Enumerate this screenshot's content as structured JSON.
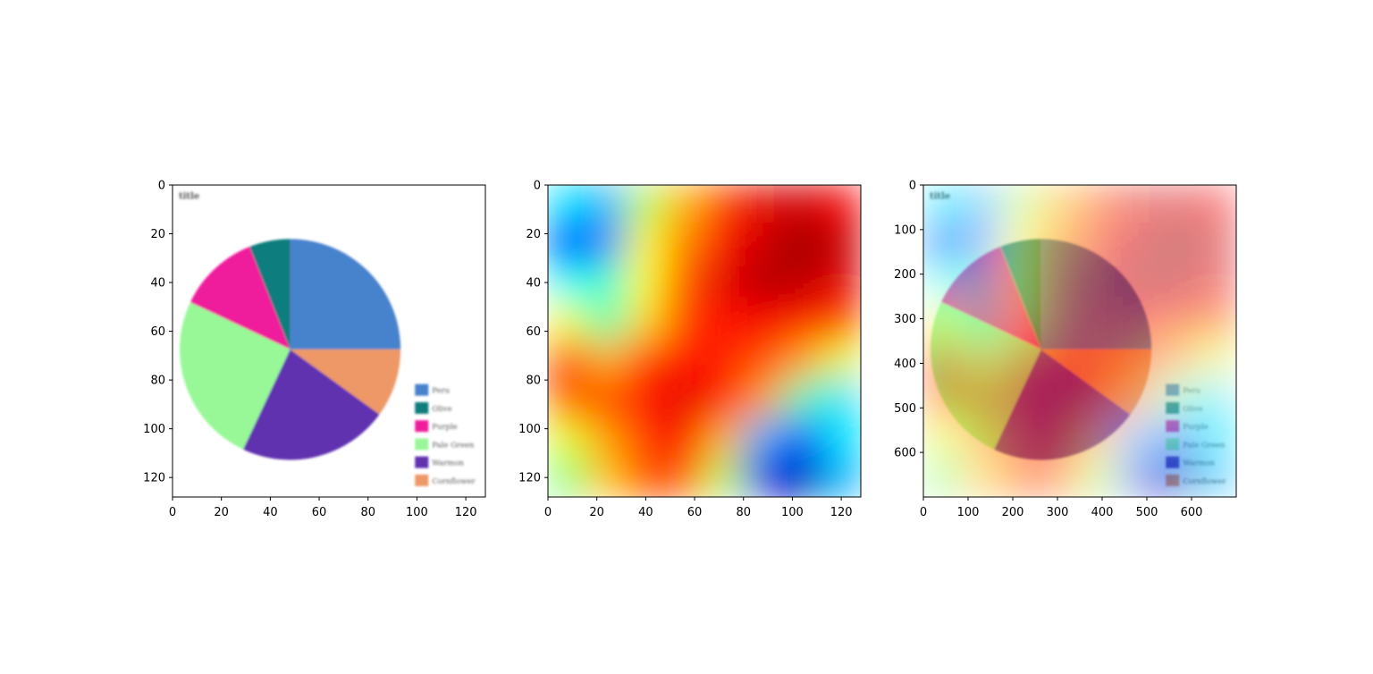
{
  "chart_data": [
    {
      "type": "image",
      "panel": "input-image",
      "xlim": [
        0,
        128
      ],
      "ylim": [
        128,
        0
      ],
      "xticks": [
        0,
        20,
        40,
        60,
        80,
        100,
        120
      ],
      "yticks": [
        0,
        20,
        40,
        60,
        80,
        100,
        120
      ],
      "embedded_chart": {
        "type": "pie",
        "title": "title",
        "slices": [
          {
            "label": "Peru",
            "value": 25,
            "color": "#4682cd"
          },
          {
            "label": "Olive",
            "value": 6,
            "color": "#0e7d7d"
          },
          {
            "label": "Purple",
            "value": 12,
            "color": "#ef1e9c"
          },
          {
            "label": "Pale Green",
            "value": 25,
            "color": "#98f898"
          },
          {
            "label": "Warmon",
            "value": 22,
            "color": "#6130b0"
          },
          {
            "label": "Cornflower",
            "value": 10,
            "color": "#ed9866"
          }
        ],
        "legend_position": "bottom-right"
      }
    },
    {
      "type": "heatmap",
      "panel": "saliency-map",
      "colormap": "jet",
      "xlim": [
        0,
        128
      ],
      "ylim": [
        128,
        0
      ],
      "xticks": [
        0,
        20,
        40,
        60,
        80,
        100,
        120
      ],
      "yticks": [
        0,
        20,
        40,
        60,
        80,
        100,
        120
      ],
      "grid_rows": 8,
      "grid_cols": 8,
      "values": [
        [
          0.35,
          0.3,
          0.55,
          0.7,
          0.82,
          0.9,
          0.92,
          0.88
        ],
        [
          0.15,
          0.25,
          0.62,
          0.75,
          0.88,
          0.92,
          0.97,
          0.93
        ],
        [
          0.38,
          0.42,
          0.62,
          0.8,
          0.9,
          0.95,
          0.94,
          0.9
        ],
        [
          0.62,
          0.45,
          0.66,
          0.82,
          0.86,
          0.88,
          0.86,
          0.82
        ],
        [
          0.82,
          0.7,
          0.82,
          0.86,
          0.84,
          0.8,
          0.72,
          0.6
        ],
        [
          0.78,
          0.8,
          0.86,
          0.9,
          0.85,
          0.72,
          0.45,
          0.35
        ],
        [
          0.6,
          0.72,
          0.82,
          0.88,
          0.7,
          0.3,
          0.2,
          0.35
        ],
        [
          0.5,
          0.68,
          0.8,
          0.78,
          0.55,
          0.1,
          0.05,
          0.3
        ]
      ]
    },
    {
      "type": "image-overlay",
      "panel": "overlay",
      "xlim": [
        0,
        700
      ],
      "ylim": [
        700,
        0
      ],
      "xticks": [
        0,
        100,
        200,
        300,
        400,
        500,
        600
      ],
      "yticks": [
        100,
        200,
        300,
        400,
        500,
        600
      ],
      "ytick_zero": "0",
      "overlay_alpha": 0.5
    }
  ]
}
